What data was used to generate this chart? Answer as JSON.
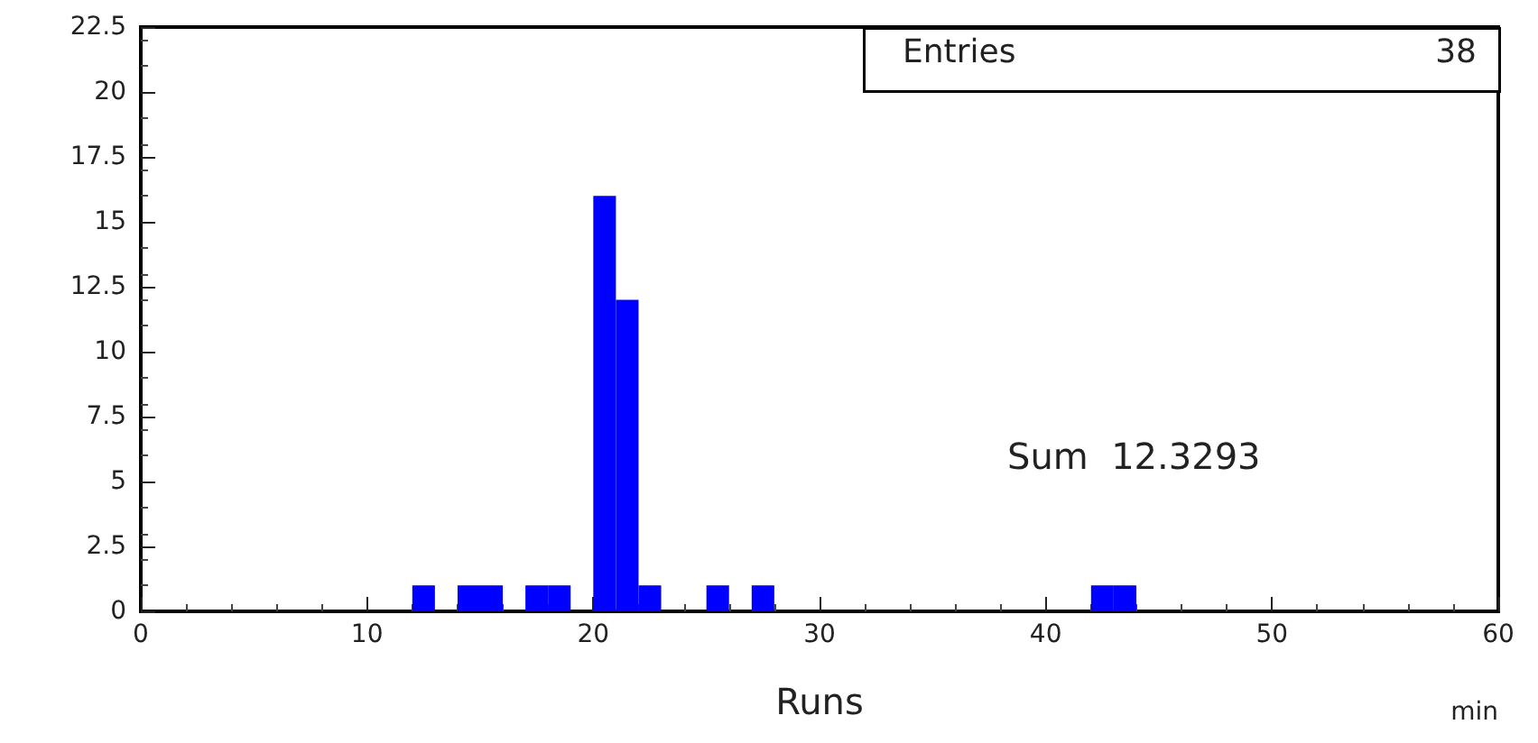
{
  "chart_data": {
    "type": "histogram",
    "xlabel": "Runs",
    "annotations": [
      "Entries",
      "38",
      "Sum  12.3293",
      "min"
    ],
    "bins": [
      0,
      1,
      2,
      3,
      4,
      5,
      6,
      7,
      8,
      9,
      10,
      11,
      12,
      13,
      14,
      15,
      16,
      17,
      18,
      19,
      20,
      21,
      22,
      23,
      24,
      25,
      26,
      27,
      28,
      29,
      30,
      31,
      32,
      33,
      34,
      35,
      36,
      37,
      38,
      39,
      40,
      41,
      42,
      43,
      44,
      45,
      46,
      47,
      48,
      49,
      50,
      51,
      52,
      53,
      54,
      55,
      56,
      57,
      58,
      59,
      60
    ],
    "values": [
      0,
      0,
      0,
      0,
      0,
      0,
      0,
      0,
      0,
      0,
      0,
      0,
      1,
      0,
      1,
      1,
      0,
      1,
      1,
      0,
      16,
      12,
      1,
      0,
      0,
      1,
      0,
      1,
      0,
      0,
      0,
      0,
      0,
      0,
      0,
      0,
      0,
      0,
      0,
      0,
      0,
      0,
      1,
      1,
      0,
      0,
      0,
      0,
      0,
      0,
      0,
      0,
      0,
      0,
      0,
      0,
      0,
      0,
      0,
      0
    ],
    "color": "#0000ff",
    "xlim": [
      0,
      60
    ],
    "xticks": [
      0,
      10,
      20,
      30,
      40,
      50,
      60
    ],
    "ylim": [
      0,
      22.5
    ],
    "yticks": [
      0,
      2.5,
      5,
      7.5,
      10,
      12.5,
      15,
      17.5,
      20,
      22.5
    ],
    "grid": false
  }
}
